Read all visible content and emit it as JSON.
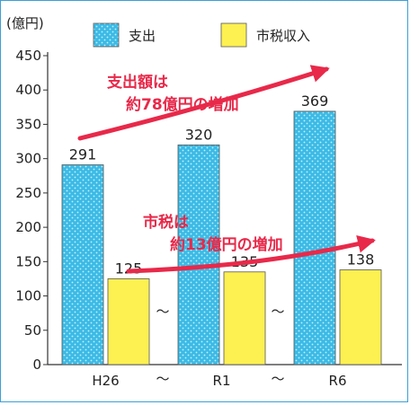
{
  "chart_data": {
    "type": "bar",
    "categories": [
      "H26",
      "R1",
      "R6"
    ],
    "series": [
      {
        "name": "支出",
        "values": [
          291,
          320,
          369
        ],
        "color": "#3bbbe6",
        "pattern": "dots"
      },
      {
        "name": "市税収入",
        "values": [
          125,
          135,
          138
        ],
        "color": "#fdf051"
      }
    ],
    "ylabel": "(億円)",
    "ylim": [
      0,
      450
    ],
    "yticks": [
      0,
      50,
      100,
      150,
      200,
      250,
      300,
      350,
      400,
      450
    ],
    "legend_position": "top",
    "break_symbol": "～",
    "annotations": [
      {
        "line1": "支出額は",
        "line2": "約78億円の増加"
      },
      {
        "line1": "市税は",
        "line2": "約13億円の増加"
      }
    ],
    "annotation_color": "#e8294a"
  }
}
